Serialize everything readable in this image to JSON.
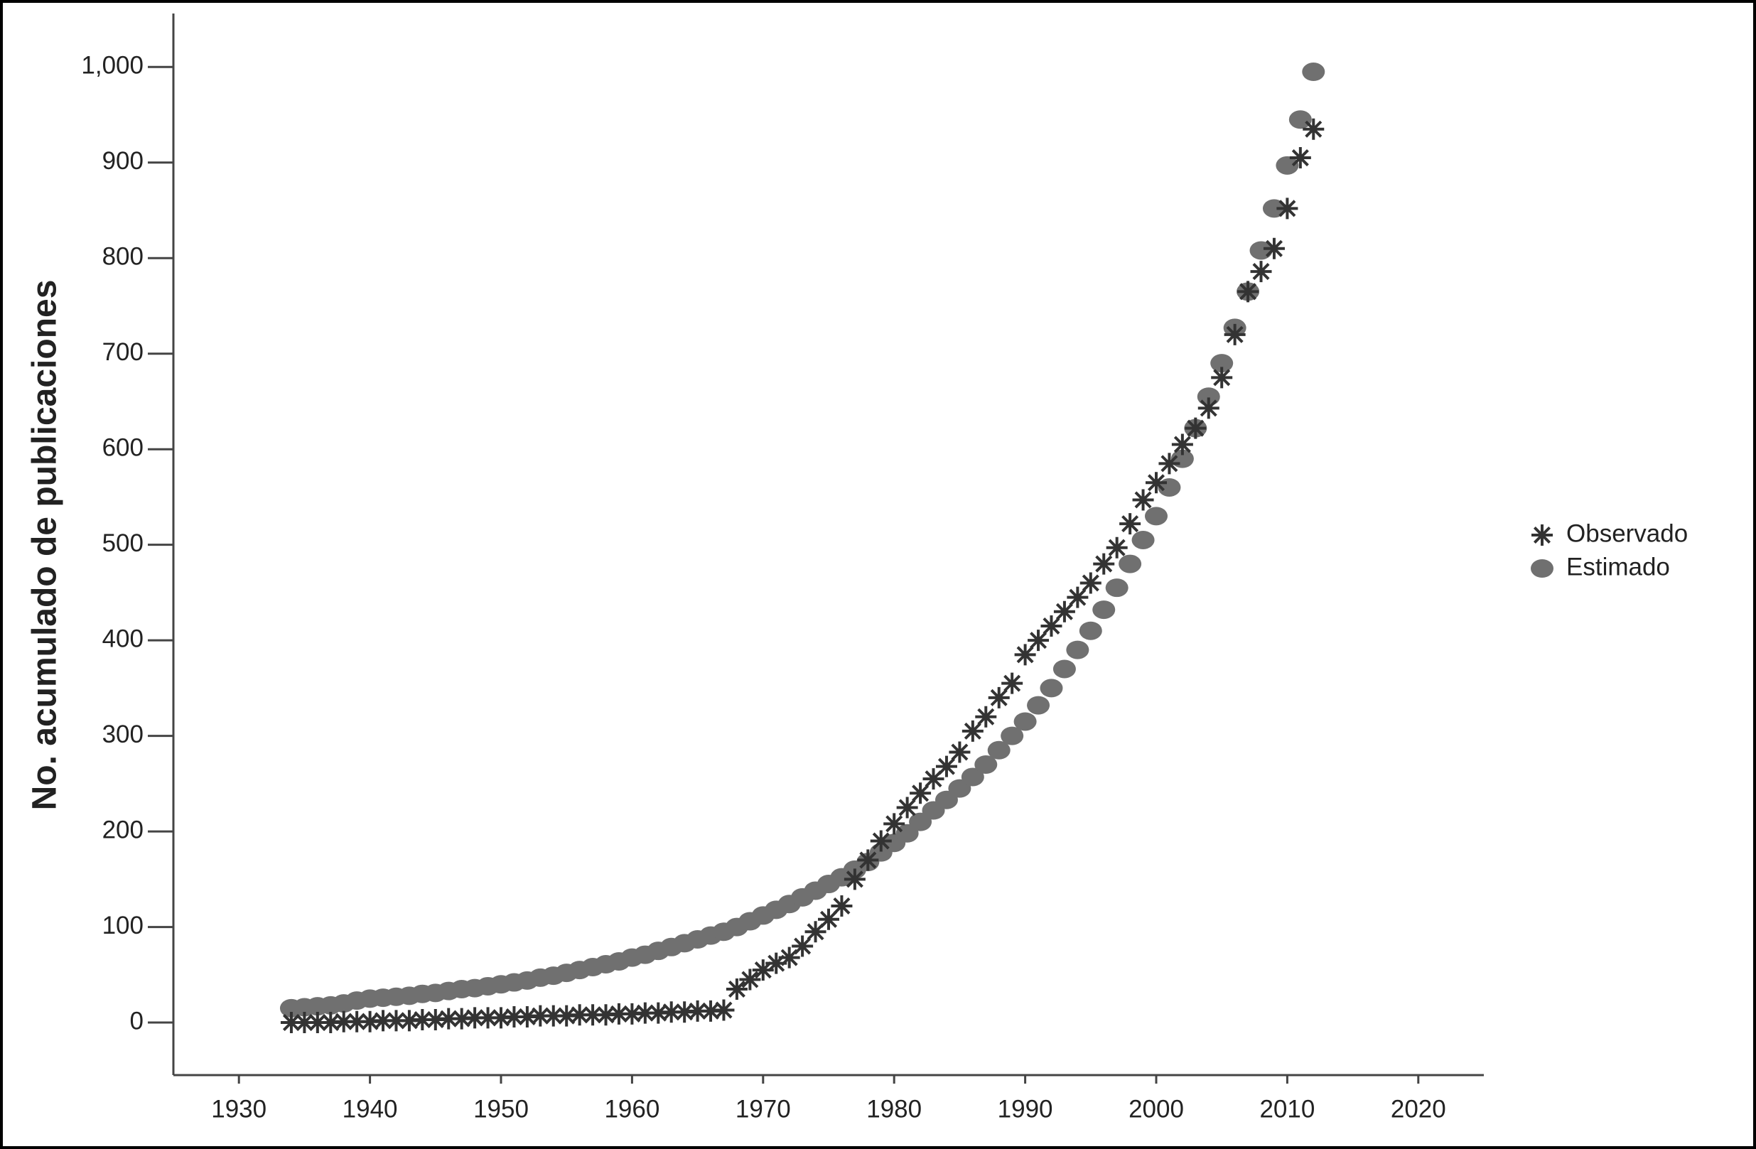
{
  "chart_data": {
    "type": "scatter",
    "ylabel": "No. acumulado de publicaciones",
    "x": [
      1934,
      1935,
      1936,
      1937,
      1938,
      1939,
      1940,
      1941,
      1942,
      1943,
      1944,
      1945,
      1946,
      1947,
      1948,
      1949,
      1950,
      1951,
      1952,
      1953,
      1954,
      1955,
      1956,
      1957,
      1958,
      1959,
      1960,
      1961,
      1962,
      1963,
      1964,
      1965,
      1966,
      1967,
      1968,
      1969,
      1970,
      1971,
      1972,
      1973,
      1974,
      1975,
      1976,
      1977,
      1978,
      1979,
      1980,
      1981,
      1982,
      1983,
      1984,
      1985,
      1986,
      1987,
      1988,
      1989,
      1990,
      1991,
      1992,
      1993,
      1994,
      1995,
      1996,
      1997,
      1998,
      1999,
      2000,
      2001,
      2002,
      2003,
      2004,
      2005,
      2006,
      2007,
      2008,
      2009,
      2010,
      2011,
      2012
    ],
    "series": [
      {
        "name": "Observado",
        "color": "#333333",
        "marker": "asterisk",
        "values": [
          0,
          0,
          0,
          0,
          1,
          1,
          1,
          2,
          2,
          2,
          3,
          3,
          4,
          4,
          5,
          5,
          5,
          6,
          6,
          7,
          7,
          7,
          8,
          8,
          8,
          9,
          9,
          10,
          10,
          11,
          11,
          12,
          12,
          13,
          35,
          45,
          55,
          62,
          68,
          80,
          95,
          108,
          122,
          150,
          170,
          190,
          208,
          225,
          240,
          255,
          268,
          283,
          305,
          320,
          340,
          355,
          385,
          400,
          415,
          430,
          445,
          460,
          480,
          497,
          522,
          547,
          565,
          585,
          605,
          622,
          643,
          675,
          720,
          765,
          786,
          810,
          852,
          905,
          935
        ]
      },
      {
        "name": "Estimado",
        "color": "#707070",
        "marker": "circle",
        "values": [
          15,
          16,
          17,
          18,
          20,
          23,
          25,
          26,
          27,
          28,
          30,
          31,
          33,
          35,
          36,
          38,
          40,
          42,
          44,
          47,
          49,
          52,
          55,
          58,
          61,
          64,
          68,
          71,
          75,
          79,
          83,
          87,
          91,
          95,
          100,
          106,
          112,
          118,
          124,
          131,
          138,
          145,
          152,
          160,
          168,
          178,
          188,
          198,
          210,
          222,
          233,
          245,
          257,
          270,
          285,
          300,
          315,
          332,
          350,
          370,
          390,
          410,
          432,
          455,
          480,
          505,
          530,
          560,
          590,
          622,
          655,
          690,
          727,
          765,
          808,
          852,
          897,
          945,
          995
        ]
      }
    ],
    "xlim": [
      1925,
      2025
    ],
    "xticks": [
      1930,
      1940,
      1950,
      1960,
      1970,
      1980,
      1990,
      2000,
      2010,
      2020
    ],
    "ylim": [
      -55,
      1056
    ],
    "yticks": [
      0,
      100,
      200,
      300,
      400,
      500,
      600,
      700,
      800,
      900,
      {
        "value": 1000,
        "label": "1,000"
      }
    ],
    "legend": "right"
  }
}
